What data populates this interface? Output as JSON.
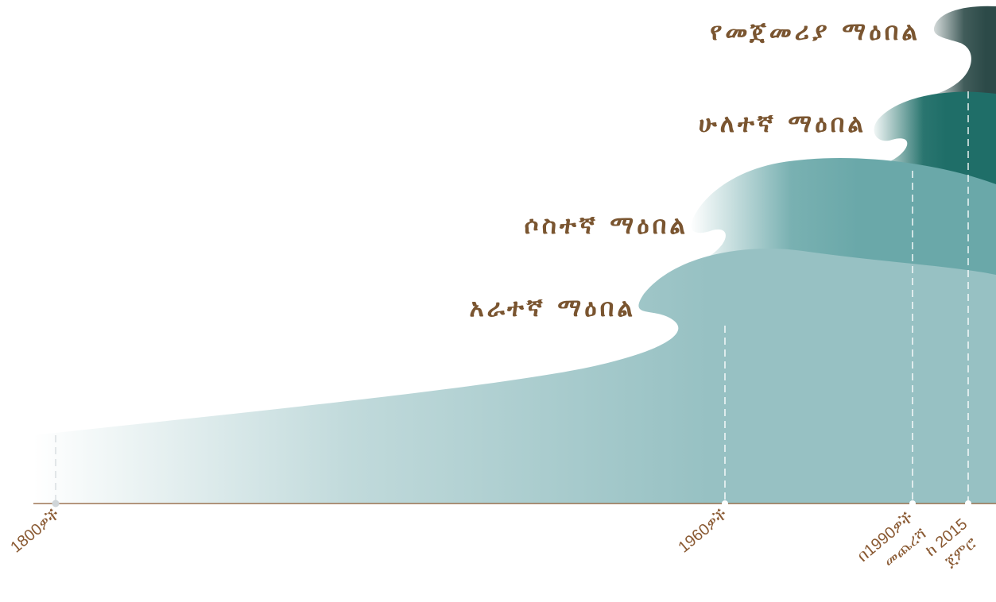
{
  "waves": [
    {
      "id": "fourth",
      "label": "አራተኛ ማዕበል",
      "color": "#97c1c3"
    },
    {
      "id": "third",
      "label": "ሶስተኛ ማዕበል",
      "color": "#6aa8a9"
    },
    {
      "id": "second",
      "label": "ሁለተኛ ማዕበል",
      "color": "#1f6e68"
    },
    {
      "id": "first",
      "label": "የመጀመሪያ ማዕበል",
      "color": "#2c4a48"
    }
  ],
  "timeline": {
    "ticks": [
      {
        "label": "1800ዎች"
      },
      {
        "label": "1960ዎች"
      },
      {
        "line1": "በ1990ዎች",
        "line2": "መጨረሻ"
      },
      {
        "line1": "ከ 2015",
        "line2": "ጀምሮ"
      }
    ]
  },
  "colors": {
    "label_text": "#7a5530",
    "axis": "#8a5a33"
  }
}
